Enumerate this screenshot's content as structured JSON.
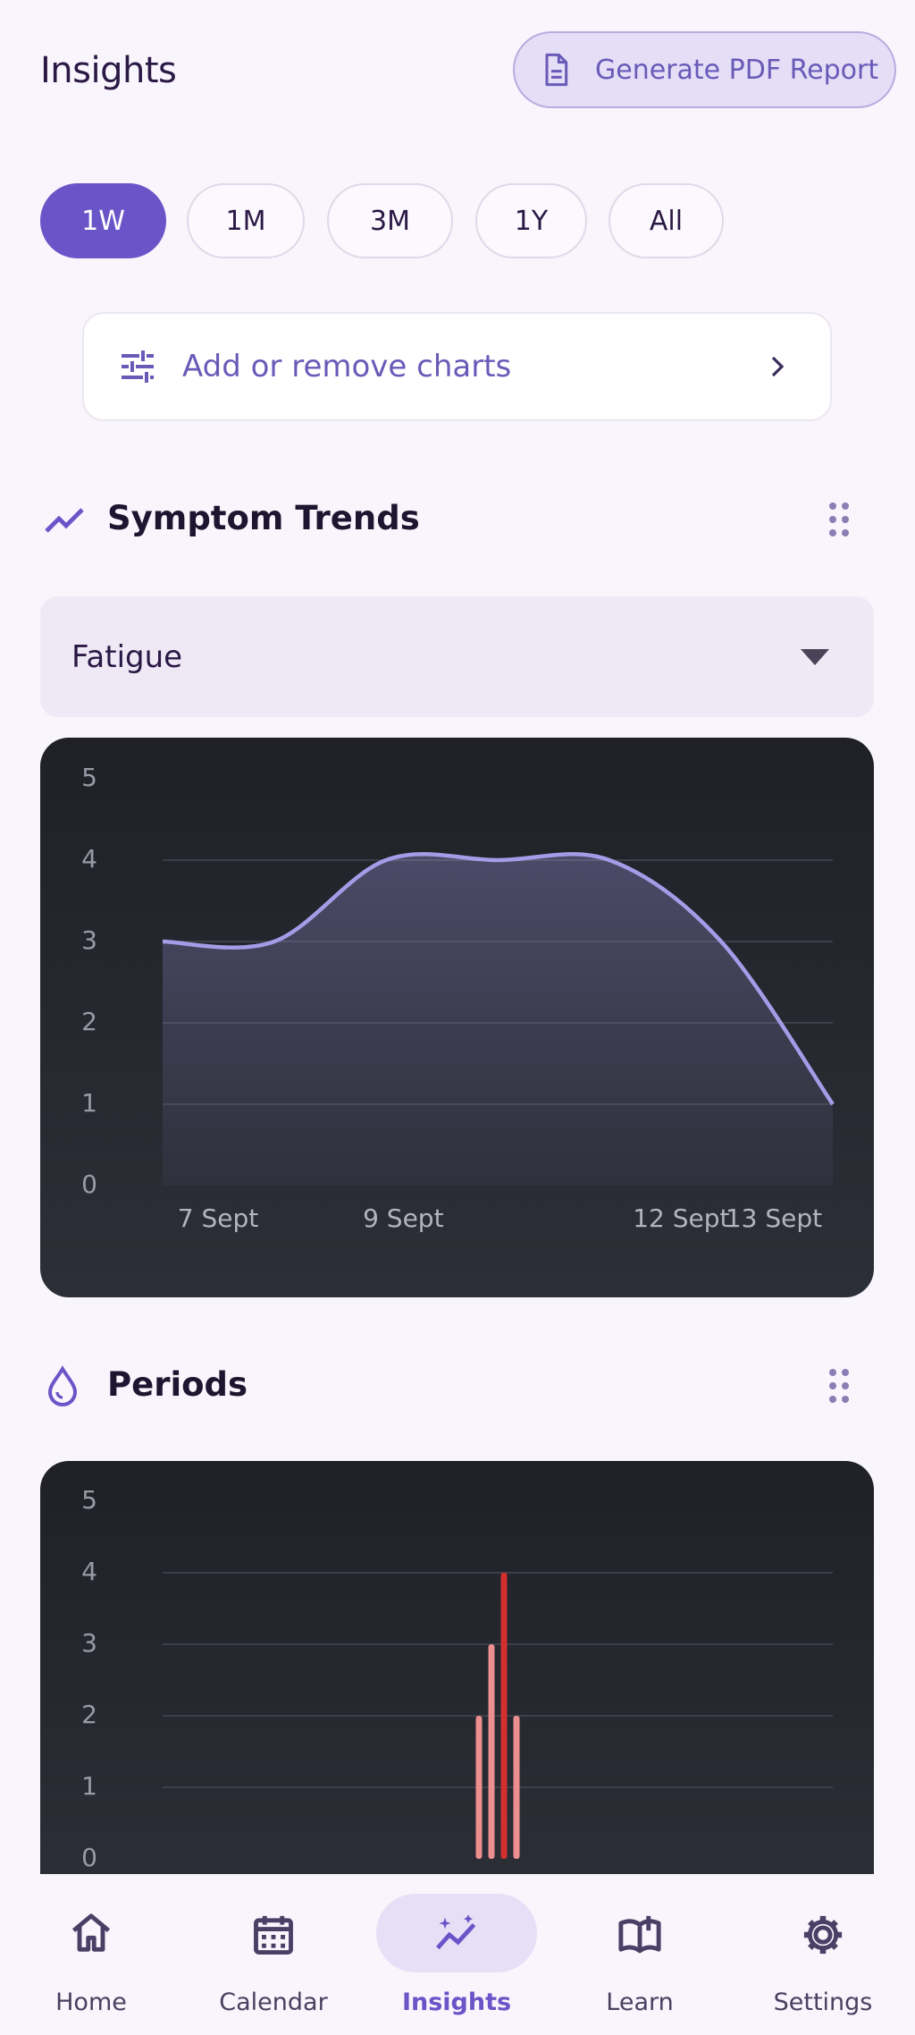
{
  "header": {
    "title": "Insights",
    "button": "Generate PDF Report"
  },
  "range_options": [
    "1W",
    "1M",
    "3M",
    "1Y",
    "All"
  ],
  "selected_range_index": 0,
  "add_charts": "Add or remove charts",
  "sections": [
    {
      "title": "Symptom Trends"
    },
    {
      "title": "Periods"
    }
  ],
  "symptom_select": "Fatigue",
  "chart_data": [
    {
      "type": "line",
      "categories": [
        "7 Sept",
        null,
        "9 Sept",
        null,
        null,
        "12 Sept",
        "13 Sept"
      ],
      "values": [
        3,
        3,
        4,
        4,
        4,
        3,
        1
      ],
      "color": "#a59ce8",
      "ylim": [
        0,
        5
      ],
      "yticks": [
        0,
        1,
        2,
        3,
        4,
        5
      ],
      "grid": true
    },
    {
      "type": "bar",
      "categories": [
        null,
        null,
        null,
        null
      ],
      "values": [
        2,
        3,
        4,
        2
      ],
      "colors": [
        "#ee8f8f",
        "#ee8f8f",
        "#d32f2f",
        "#ee8f8f"
      ],
      "ylim": [
        0,
        5
      ],
      "yticks": [
        0,
        1,
        2,
        3,
        4,
        5
      ],
      "grid": true
    }
  ],
  "nav": {
    "items": [
      "Home",
      "Calendar",
      "Insights",
      "Learn",
      "Settings"
    ],
    "active_index": 2
  }
}
